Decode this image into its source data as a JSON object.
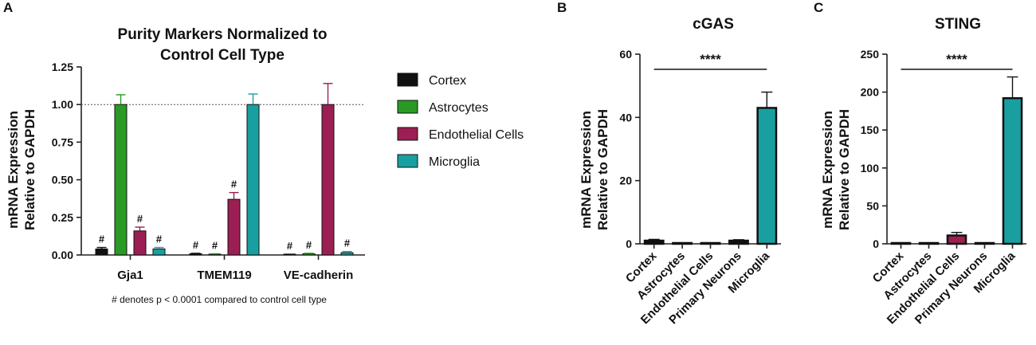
{
  "colors": {
    "Cortex": "#111111",
    "Astrocytes": "#2a9a25",
    "Endothelial Cells": "#9b1f52",
    "Primary Neurons": "#111111",
    "Microglia": "#1a9fa0"
  },
  "chart_data": [
    {
      "panel": "A",
      "type": "bar",
      "title_lines": [
        "Purity Markers Normalized to",
        "Control Cell Type"
      ],
      "ylabel_lines": [
        "mRNA Expression",
        "Relative to GAPDH"
      ],
      "ylim": [
        0,
        1.25
      ],
      "yticks": [
        "0.00",
        "0.25",
        "0.50",
        "0.75",
        "1.00",
        "1.25"
      ],
      "reference_line": 1.0,
      "categories": [
        "Gja1",
        "TMEM119",
        "VE-cadherin"
      ],
      "series": [
        {
          "name": "Cortex",
          "values": [
            0.04,
            0.008,
            0.003
          ],
          "errors": [
            0.01,
            0.003,
            0.002
          ],
          "marks": [
            "#",
            "#",
            "#"
          ]
        },
        {
          "name": "Astrocytes",
          "values": [
            1.0,
            0.005,
            0.008
          ],
          "errors": [
            0.065,
            0.003,
            0.003
          ],
          "marks": [
            "",
            "#",
            "#"
          ]
        },
        {
          "name": "Endothelial Cells",
          "values": [
            0.16,
            0.37,
            1.0
          ],
          "errors": [
            0.025,
            0.045,
            0.14
          ],
          "marks": [
            "#",
            "#",
            ""
          ]
        },
        {
          "name": "Microglia",
          "values": [
            0.04,
            1.0,
            0.015
          ],
          "errors": [
            0.01,
            0.07,
            0.008
          ],
          "marks": [
            "#",
            "",
            "#"
          ]
        }
      ],
      "legend": [
        "Cortex",
        "Astrocytes",
        "Endothelial Cells",
        "Microglia"
      ],
      "footnote": "# denotes p < 0.0001 compared to control cell type"
    },
    {
      "panel": "B",
      "type": "bar",
      "title": "cGAS",
      "ylabel_lines": [
        "mRNA Expression",
        "Relative to GAPDH"
      ],
      "ylim": [
        0,
        60
      ],
      "yticks": [
        "0",
        "20",
        "40",
        "60"
      ],
      "categories": [
        "Cortex",
        "Astrocytes",
        "Endothelial Cells",
        "Primary Neurons",
        "Microglia"
      ],
      "values": [
        1.0,
        0.05,
        0.05,
        1.0,
        43.0
      ],
      "errors": [
        0.4,
        0.02,
        0.02,
        0.3,
        5.0
      ],
      "significance": "****"
    },
    {
      "panel": "C",
      "type": "bar",
      "title": "STING",
      "ylabel_lines": [
        "mRNA Expression",
        "Relative to GAPDH"
      ],
      "ylim": [
        0,
        250
      ],
      "yticks": [
        "0",
        "50",
        "100",
        "150",
        "200",
        "250"
      ],
      "categories": [
        "Cortex",
        "Astrocytes",
        "Endothelial Cells",
        "Primary Neurons",
        "Microglia"
      ],
      "values": [
        0.5,
        0.5,
        11.0,
        0.3,
        192.0
      ],
      "errors": [
        0.3,
        0.3,
        4.0,
        0.2,
        28.0
      ],
      "significance": "****"
    }
  ]
}
